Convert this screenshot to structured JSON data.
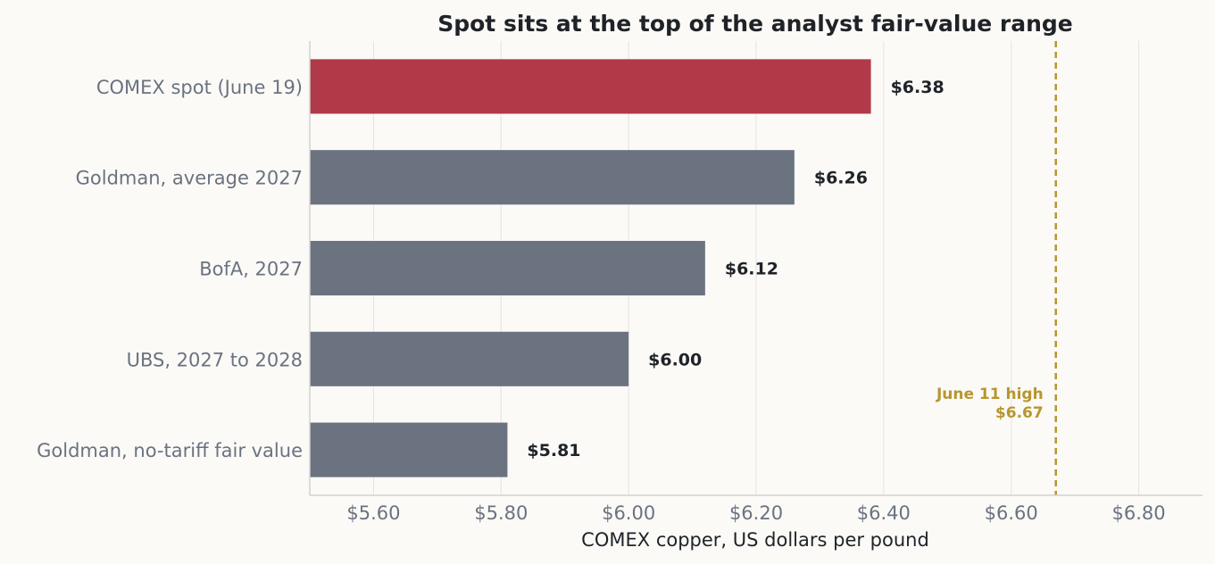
{
  "chart_data": {
    "type": "bar",
    "orientation": "horizontal",
    "title": "Spot sits at the top of the analyst fair-value range",
    "xlabel": "COMEX copper, US dollars per pound",
    "ylabel": "",
    "xlim": [
      5.5,
      6.9
    ],
    "x_ticks": [
      5.6,
      5.8,
      6.0,
      6.2,
      6.4,
      6.6,
      6.8
    ],
    "x_tick_labels": [
      "$5.60",
      "$5.80",
      "$6.00",
      "$6.20",
      "$6.40",
      "$6.60",
      "$6.80"
    ],
    "grid": "vertical",
    "categories": [
      "COMEX spot (June 19)",
      "Goldman, average 2027",
      "BofA, 2027",
      "UBS, 2027 to 2028",
      "Goldman, no-tariff fair value"
    ],
    "values": [
      6.38,
      6.26,
      6.12,
      6.0,
      5.81
    ],
    "value_labels": [
      "$6.38",
      "$6.26",
      "$6.12",
      "$6.00",
      "$5.81"
    ],
    "bar_colors": [
      "#b03a48",
      "#6b7280",
      "#6b7280",
      "#6b7280",
      "#6b7280"
    ],
    "reference_line": {
      "value": 6.67,
      "label_lines": [
        "June 11 high",
        "$6.67"
      ],
      "color": "#b8962e",
      "style": "dashed"
    },
    "colors": {
      "background": "#fbfaf7",
      "highlight": "#b03a48",
      "bar": "#6b7280",
      "grid": "#e5e3df",
      "axis": "#d4d2cd",
      "reference": "#b8962e"
    }
  }
}
